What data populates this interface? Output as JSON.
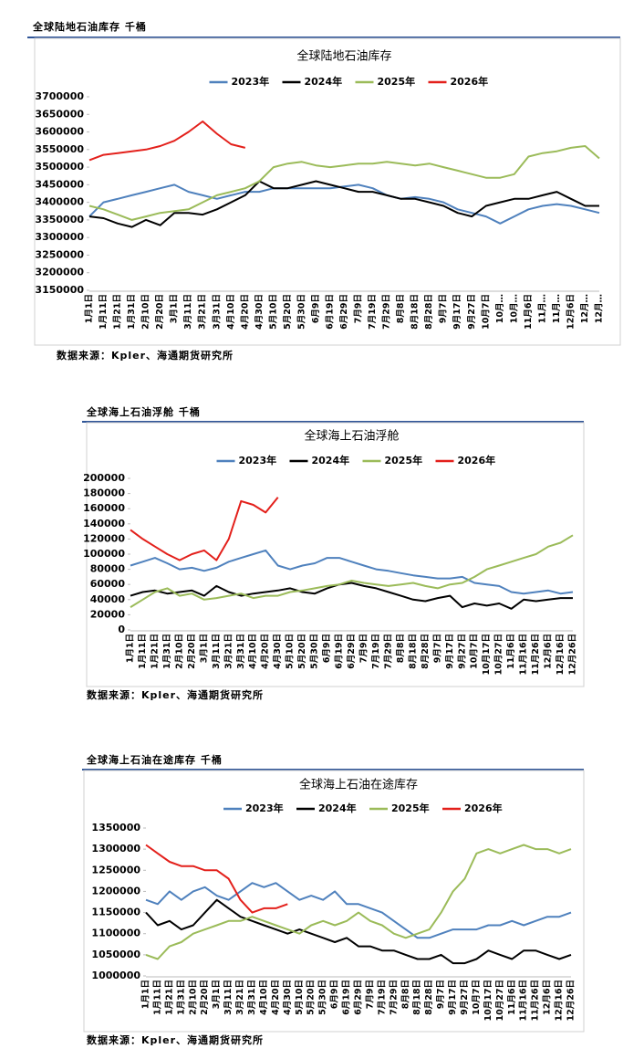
{
  "chart_data": [
    {
      "type": "line",
      "panel_title": "全球陆地石油库存 千桶",
      "title": "全球陆地石油库存",
      "source": "数据来源：Kpler、海通期货研究所",
      "categories": [
        "1月1日",
        "1月11日",
        "1月21日",
        "1月31日",
        "2月10日",
        "2月20日",
        "3月1日",
        "3月11日",
        "3月21日",
        "3月31日",
        "4月10日",
        "4月20日",
        "4月30日",
        "5月10日",
        "5月20日",
        "5月30日",
        "6月9日",
        "6月19日",
        "6月29日",
        "7月9日",
        "7月19日",
        "7月29日",
        "8月8日",
        "8月18日",
        "8月28日",
        "9月7日",
        "9月17日",
        "9月27日",
        "10月7日",
        "10月…",
        "10月…",
        "11月6日",
        "11月…",
        "11月…",
        "12月6日",
        "12月…",
        "12月…"
      ],
      "ylim": [
        3150000,
        3700000
      ],
      "yticks": [
        3150000,
        3200000,
        3250000,
        3300000,
        3350000,
        3400000,
        3450000,
        3500000,
        3550000,
        3600000,
        3650000,
        3700000
      ],
      "series": [
        {
          "name": "2023年",
          "color": "#4f81bd",
          "values": [
            3360000,
            3400000,
            3410000,
            3420000,
            3430000,
            3440000,
            3450000,
            3430000,
            3420000,
            3410000,
            3420000,
            3430000,
            3430000,
            3440000,
            3440000,
            3440000,
            3440000,
            3440000,
            3445000,
            3450000,
            3440000,
            3420000,
            3410000,
            3415000,
            3410000,
            3400000,
            3380000,
            3370000,
            3360000,
            3340000,
            3360000,
            3380000,
            3390000,
            3395000,
            3390000,
            3380000,
            3370000
          ]
        },
        {
          "name": "2024年",
          "color": "#000000",
          "values": [
            3360000,
            3355000,
            3340000,
            3330000,
            3350000,
            3335000,
            3370000,
            3370000,
            3365000,
            3380000,
            3400000,
            3420000,
            3460000,
            3440000,
            3440000,
            3450000,
            3460000,
            3450000,
            3440000,
            3430000,
            3430000,
            3420000,
            3410000,
            3410000,
            3400000,
            3390000,
            3370000,
            3360000,
            3390000,
            3400000,
            3410000,
            3410000,
            3420000,
            3430000,
            3410000,
            3390000,
            3390000
          ]
        },
        {
          "name": "2025年",
          "color": "#9bbb59",
          "values": [
            3390000,
            3380000,
            3365000,
            3350000,
            3360000,
            3370000,
            3375000,
            3380000,
            3400000,
            3420000,
            3430000,
            3440000,
            3460000,
            3500000,
            3510000,
            3515000,
            3505000,
            3500000,
            3505000,
            3510000,
            3510000,
            3515000,
            3510000,
            3505000,
            3510000,
            3500000,
            3490000,
            3480000,
            3470000,
            3470000,
            3480000,
            3530000,
            3540000,
            3545000,
            3555000,
            3560000,
            3525000
          ]
        },
        {
          "name": "2026年",
          "color": "#e3201b",
          "values": [
            3520000,
            3535000,
            3540000,
            3545000,
            3550000,
            3560000,
            3575000,
            3600000,
            3630000,
            3595000,
            3565000,
            3555000,
            null,
            null,
            null,
            null,
            null,
            null,
            null,
            null,
            null,
            null,
            null,
            null,
            null,
            null,
            null,
            null,
            null,
            null,
            null,
            null,
            null,
            null,
            null,
            null,
            null
          ]
        }
      ]
    },
    {
      "type": "line",
      "panel_title": "全球海上石油浮舱 千桶",
      "title": "全球海上石油浮舱",
      "source": "数据来源：Kpler、海通期货研究所",
      "categories": [
        "1月1日",
        "1月11日",
        "1月21日",
        "1月31日",
        "2月10日",
        "2月20日",
        "3月1日",
        "3月11日",
        "3月21日",
        "3月31日",
        "4月10日",
        "4月20日",
        "4月30日",
        "5月10日",
        "5月20日",
        "5月30日",
        "6月9日",
        "6月19日",
        "6月29日",
        "7月9日",
        "7月19日",
        "7月29日",
        "8月8日",
        "8月18日",
        "8月28日",
        "9月7日",
        "9月17日",
        "9月27日",
        "10月7日",
        "10月17日",
        "10月27日",
        "11月6日",
        "11月16日",
        "11月26日",
        "12月6日",
        "12月16日",
        "12月26日"
      ],
      "ylim": [
        0,
        200000
      ],
      "yticks": [
        0,
        20000,
        40000,
        60000,
        80000,
        100000,
        120000,
        140000,
        160000,
        180000,
        200000
      ],
      "series": [
        {
          "name": "2023年",
          "color": "#4f81bd",
          "values": [
            85000,
            90000,
            95000,
            88000,
            80000,
            82000,
            78000,
            82000,
            90000,
            95000,
            100000,
            105000,
            85000,
            80000,
            85000,
            88000,
            95000,
            95000,
            90000,
            85000,
            80000,
            78000,
            75000,
            72000,
            70000,
            68000,
            68000,
            70000,
            62000,
            60000,
            58000,
            50000,
            48000,
            50000,
            52000,
            48000,
            50000
          ]
        },
        {
          "name": "2024年",
          "color": "#000000",
          "values": [
            45000,
            50000,
            52000,
            48000,
            50000,
            52000,
            45000,
            58000,
            50000,
            45000,
            48000,
            50000,
            52000,
            55000,
            50000,
            48000,
            55000,
            60000,
            62000,
            58000,
            55000,
            50000,
            45000,
            40000,
            38000,
            42000,
            45000,
            30000,
            35000,
            32000,
            35000,
            28000,
            40000,
            38000,
            40000,
            42000,
            42000
          ]
        },
        {
          "name": "2025年",
          "color": "#9bbb59",
          "values": [
            30000,
            40000,
            50000,
            55000,
            45000,
            48000,
            40000,
            42000,
            45000,
            48000,
            42000,
            45000,
            45000,
            50000,
            52000,
            55000,
            58000,
            60000,
            65000,
            62000,
            60000,
            58000,
            60000,
            62000,
            58000,
            55000,
            60000,
            62000,
            70000,
            80000,
            85000,
            90000,
            95000,
            100000,
            110000,
            115000,
            125000
          ]
        },
        {
          "name": "2026年",
          "color": "#e3201b",
          "values": [
            132000,
            120000,
            110000,
            100000,
            92000,
            100000,
            105000,
            92000,
            120000,
            170000,
            165000,
            155000,
            175000,
            null,
            null,
            null,
            null,
            null,
            null,
            null,
            null,
            null,
            null,
            null,
            null,
            null,
            null,
            null,
            null,
            null,
            null,
            null,
            null,
            null,
            null,
            null,
            null
          ]
        }
      ]
    },
    {
      "type": "line",
      "panel_title": "全球海上石油在途库存 千桶",
      "title": "全球海上石油在途库存",
      "source": "数据来源：Kpler、海通期货研究所",
      "categories": [
        "1月1日",
        "1月11日",
        "1月21日",
        "1月31日",
        "2月10日",
        "2月20日",
        "3月1日",
        "3月11日",
        "3月21日",
        "3月31日",
        "4月10日",
        "4月20日",
        "4月30日",
        "5月10日",
        "5月20日",
        "5月30日",
        "6月9日",
        "6月19日",
        "6月29日",
        "7月9日",
        "7月19日",
        "7月29日",
        "8月8日",
        "8月18日",
        "8月28日",
        "9月7日",
        "9月17日",
        "9月27日",
        "10月7日",
        "10月17日",
        "10月27日",
        "11月6日",
        "11月16日",
        "11月26日",
        "12月6日",
        "12月16日",
        "12月26日"
      ],
      "ylim": [
        1000000,
        1350000
      ],
      "yticks": [
        1000000,
        1050000,
        1100000,
        1150000,
        1200000,
        1250000,
        1300000,
        1350000
      ],
      "series": [
        {
          "name": "2023年",
          "color": "#4f81bd",
          "values": [
            1180000,
            1170000,
            1200000,
            1180000,
            1200000,
            1210000,
            1190000,
            1180000,
            1200000,
            1220000,
            1210000,
            1220000,
            1200000,
            1180000,
            1190000,
            1180000,
            1200000,
            1170000,
            1170000,
            1160000,
            1150000,
            1130000,
            1110000,
            1090000,
            1090000,
            1100000,
            1110000,
            1110000,
            1110000,
            1120000,
            1120000,
            1130000,
            1120000,
            1130000,
            1140000,
            1140000,
            1150000
          ]
        },
        {
          "name": "2024年",
          "color": "#000000",
          "values": [
            1150000,
            1120000,
            1130000,
            1110000,
            1120000,
            1150000,
            1180000,
            1160000,
            1140000,
            1130000,
            1120000,
            1110000,
            1100000,
            1110000,
            1100000,
            1090000,
            1080000,
            1090000,
            1070000,
            1070000,
            1060000,
            1060000,
            1050000,
            1040000,
            1040000,
            1050000,
            1030000,
            1030000,
            1040000,
            1060000,
            1050000,
            1040000,
            1060000,
            1060000,
            1050000,
            1040000,
            1050000
          ]
        },
        {
          "name": "2025年",
          "color": "#9bbb59",
          "values": [
            1050000,
            1040000,
            1070000,
            1080000,
            1100000,
            1110000,
            1120000,
            1130000,
            1130000,
            1140000,
            1130000,
            1120000,
            1110000,
            1100000,
            1120000,
            1130000,
            1120000,
            1130000,
            1150000,
            1130000,
            1120000,
            1100000,
            1090000,
            1100000,
            1110000,
            1150000,
            1200000,
            1230000,
            1290000,
            1300000,
            1290000,
            1300000,
            1310000,
            1300000,
            1300000,
            1290000,
            1300000
          ]
        },
        {
          "name": "2026年",
          "color": "#e3201b",
          "values": [
            1310000,
            1290000,
            1270000,
            1260000,
            1260000,
            1250000,
            1250000,
            1230000,
            1180000,
            1150000,
            1160000,
            1160000,
            1170000,
            null,
            null,
            null,
            null,
            null,
            null,
            null,
            null,
            null,
            null,
            null,
            null,
            null,
            null,
            null,
            null,
            null,
            null,
            null,
            null,
            null,
            null,
            null,
            null
          ]
        }
      ]
    }
  ]
}
